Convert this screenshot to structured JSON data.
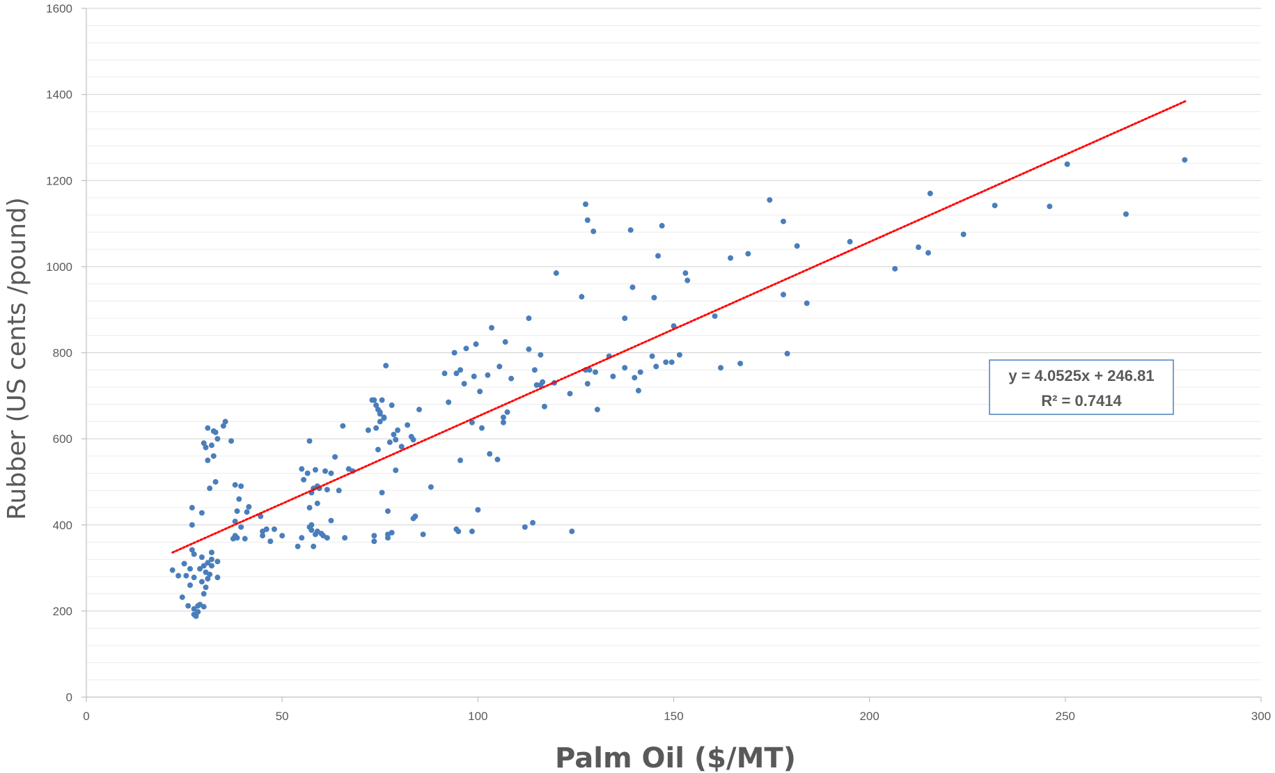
{
  "chart_data": {
    "type": "scatter",
    "xlabel": "Palm Oil ($/MT)",
    "ylabel": "Rubber (US cents /pound)",
    "xlim": [
      0,
      300
    ],
    "ylim": [
      0,
      1600
    ],
    "x_ticks": [
      0,
      50,
      100,
      150,
      200,
      250,
      300
    ],
    "y_ticks": [
      0,
      200,
      400,
      600,
      800,
      1000,
      1200,
      1400,
      1600
    ],
    "y_minor_step": 40,
    "grid": true,
    "colors": {
      "points": "#4a7ebb",
      "trendline": "#ff0000",
      "grid_major": "#d0d0d0",
      "grid_minor": "#ececec",
      "box_border": "#4a7ebb"
    },
    "trendline": {
      "slope": 4.0525,
      "intercept": 246.81,
      "x_range": [
        22,
        281
      ],
      "style": "dotted"
    },
    "annotation": {
      "line1": "y = 4.0525x + 246.81",
      "line2": "R² = 0.7414"
    },
    "points": [
      [
        22,
        295
      ],
      [
        23.5,
        282
      ],
      [
        24.5,
        232
      ],
      [
        25,
        310
      ],
      [
        25.5,
        282
      ],
      [
        26,
        212
      ],
      [
        26.5,
        260
      ],
      [
        26.5,
        298
      ],
      [
        27,
        440
      ],
      [
        27,
        400
      ],
      [
        27,
        342
      ],
      [
        27.5,
        332
      ],
      [
        27.5,
        278
      ],
      [
        27.5,
        205
      ],
      [
        27.5,
        192
      ],
      [
        28,
        188
      ],
      [
        28.5,
        198
      ],
      [
        28.5,
        212
      ],
      [
        29,
        298
      ],
      [
        29,
        215
      ],
      [
        29.5,
        428
      ],
      [
        29.5,
        325
      ],
      [
        29.5,
        268
      ],
      [
        30,
        590
      ],
      [
        30,
        305
      ],
      [
        30,
        240
      ],
      [
        30,
        210
      ],
      [
        30.5,
        580
      ],
      [
        30.5,
        290
      ],
      [
        30.5,
        255
      ],
      [
        31,
        625
      ],
      [
        31,
        550
      ],
      [
        31,
        312
      ],
      [
        31,
        275
      ],
      [
        31.5,
        485
      ],
      [
        31.5,
        285
      ],
      [
        32,
        585
      ],
      [
        32,
        336
      ],
      [
        32,
        320
      ],
      [
        32,
        305
      ],
      [
        32.5,
        560
      ],
      [
        32.5,
        618
      ],
      [
        33,
        500
      ],
      [
        33,
        615
      ],
      [
        33.5,
        600
      ],
      [
        33.5,
        315
      ],
      [
        33.5,
        278
      ],
      [
        35,
        630
      ],
      [
        35.5,
        640
      ],
      [
        37,
        595
      ],
      [
        37.5,
        368
      ],
      [
        38,
        375
      ],
      [
        38,
        493
      ],
      [
        38,
        408
      ],
      [
        38.5,
        432
      ],
      [
        38.5,
        370
      ],
      [
        39,
        460
      ],
      [
        39.5,
        490
      ],
      [
        39.5,
        395
      ],
      [
        40.5,
        368
      ],
      [
        41,
        430
      ],
      [
        41.5,
        442
      ],
      [
        44.5,
        420
      ],
      [
        45,
        385
      ],
      [
        45,
        375
      ],
      [
        46,
        390
      ],
      [
        47,
        362
      ],
      [
        48,
        390
      ],
      [
        50,
        375
      ],
      [
        54,
        350
      ],
      [
        55,
        370
      ],
      [
        55,
        530
      ],
      [
        55.5,
        505
      ],
      [
        56.5,
        520
      ],
      [
        57,
        595
      ],
      [
        57,
        440
      ],
      [
        57,
        395
      ],
      [
        57.5,
        388
      ],
      [
        57.5,
        475
      ],
      [
        57.5,
        400
      ],
      [
        58,
        350
      ],
      [
        58,
        485
      ],
      [
        58.5,
        378
      ],
      [
        58.5,
        528
      ],
      [
        59,
        490
      ],
      [
        59,
        450
      ],
      [
        59,
        385
      ],
      [
        59.5,
        485
      ],
      [
        60,
        380
      ],
      [
        60.5,
        375
      ],
      [
        61,
        525
      ],
      [
        61.5,
        370
      ],
      [
        61.5,
        482
      ],
      [
        62.5,
        410
      ],
      [
        62.5,
        520
      ],
      [
        63.5,
        558
      ],
      [
        64.5,
        480
      ],
      [
        65.5,
        630
      ],
      [
        66,
        370
      ],
      [
        67,
        530
      ],
      [
        68,
        525
      ],
      [
        72,
        620
      ],
      [
        73,
        690
      ],
      [
        73.5,
        690
      ],
      [
        73.5,
        375
      ],
      [
        73.5,
        362
      ],
      [
        74,
        678
      ],
      [
        74,
        625
      ],
      [
        74.5,
        668
      ],
      [
        74.5,
        575
      ],
      [
        75,
        658
      ],
      [
        75,
        662
      ],
      [
        75,
        640
      ],
      [
        75.5,
        475
      ],
      [
        75.5,
        690
      ],
      [
        76,
        648
      ],
      [
        76,
        650
      ],
      [
        76.5,
        770
      ],
      [
        77,
        432
      ],
      [
        77,
        370
      ],
      [
        77,
        378
      ],
      [
        77.5,
        592
      ],
      [
        78,
        678
      ],
      [
        78,
        382
      ],
      [
        78.5,
        610
      ],
      [
        79,
        527
      ],
      [
        79,
        598
      ],
      [
        79.5,
        620
      ],
      [
        80.5,
        582
      ],
      [
        82,
        632
      ],
      [
        83,
        605
      ],
      [
        83.5,
        598
      ],
      [
        83.5,
        415
      ],
      [
        84,
        420
      ],
      [
        85,
        668
      ],
      [
        86,
        378
      ],
      [
        88,
        488
      ],
      [
        91.5,
        752
      ],
      [
        92.5,
        685
      ],
      [
        94,
        800
      ],
      [
        94.5,
        390
      ],
      [
        94.5,
        752
      ],
      [
        95,
        385
      ],
      [
        95.5,
        760
      ],
      [
        95.5,
        550
      ],
      [
        96.5,
        728
      ],
      [
        97,
        810
      ],
      [
        98.5,
        638
      ],
      [
        98.5,
        385
      ],
      [
        99,
        745
      ],
      [
        99.5,
        820
      ],
      [
        100,
        435
      ],
      [
        100.5,
        710
      ],
      [
        101,
        625
      ],
      [
        102.5,
        748
      ],
      [
        103,
        565
      ],
      [
        103.5,
        858
      ],
      [
        105,
        552
      ],
      [
        105.5,
        768
      ],
      [
        106.5,
        638
      ],
      [
        106.5,
        650
      ],
      [
        107,
        825
      ],
      [
        107.5,
        662
      ],
      [
        108.5,
        740
      ],
      [
        112,
        395
      ],
      [
        113,
        880
      ],
      [
        113,
        808
      ],
      [
        114,
        405
      ],
      [
        114.5,
        760
      ],
      [
        115,
        725
      ],
      [
        116,
        795
      ],
      [
        116,
        725
      ],
      [
        116.5,
        732
      ],
      [
        117,
        675
      ],
      [
        119.5,
        730
      ],
      [
        120,
        985
      ],
      [
        123.5,
        705
      ],
      [
        124,
        385
      ],
      [
        126.5,
        930
      ],
      [
        127.5,
        1145
      ],
      [
        127.5,
        760
      ],
      [
        128,
        1108
      ],
      [
        128,
        728
      ],
      [
        128.5,
        760
      ],
      [
        129.5,
        1082
      ],
      [
        130,
        755
      ],
      [
        130.5,
        668
      ],
      [
        133.5,
        792
      ],
      [
        134.5,
        745
      ],
      [
        137.5,
        765
      ],
      [
        137.5,
        880
      ],
      [
        139,
        1085
      ],
      [
        139.5,
        952
      ],
      [
        140,
        742
      ],
      [
        141,
        712
      ],
      [
        141.5,
        755
      ],
      [
        144.5,
        792
      ],
      [
        145,
        928
      ],
      [
        145.5,
        768
      ],
      [
        146,
        1025
      ],
      [
        147,
        1095
      ],
      [
        148,
        778
      ],
      [
        149.5,
        778
      ],
      [
        150,
        862
      ],
      [
        151.5,
        795
      ],
      [
        153,
        985
      ],
      [
        153.5,
        968
      ],
      [
        160.5,
        885
      ],
      [
        162,
        765
      ],
      [
        164.5,
        1020
      ],
      [
        167,
        775
      ],
      [
        169,
        1030
      ],
      [
        174.5,
        1155
      ],
      [
        178,
        1105
      ],
      [
        178,
        935
      ],
      [
        179,
        798
      ],
      [
        181.5,
        1048
      ],
      [
        184,
        915
      ],
      [
        195,
        1058
      ],
      [
        206.5,
        995
      ],
      [
        212.5,
        1045
      ],
      [
        215,
        1032
      ],
      [
        215.5,
        1170
      ],
      [
        224,
        1075
      ],
      [
        232,
        1142
      ],
      [
        246,
        1140
      ],
      [
        250.5,
        1238
      ],
      [
        265.5,
        1122
      ],
      [
        280.5,
        1248
      ]
    ]
  }
}
